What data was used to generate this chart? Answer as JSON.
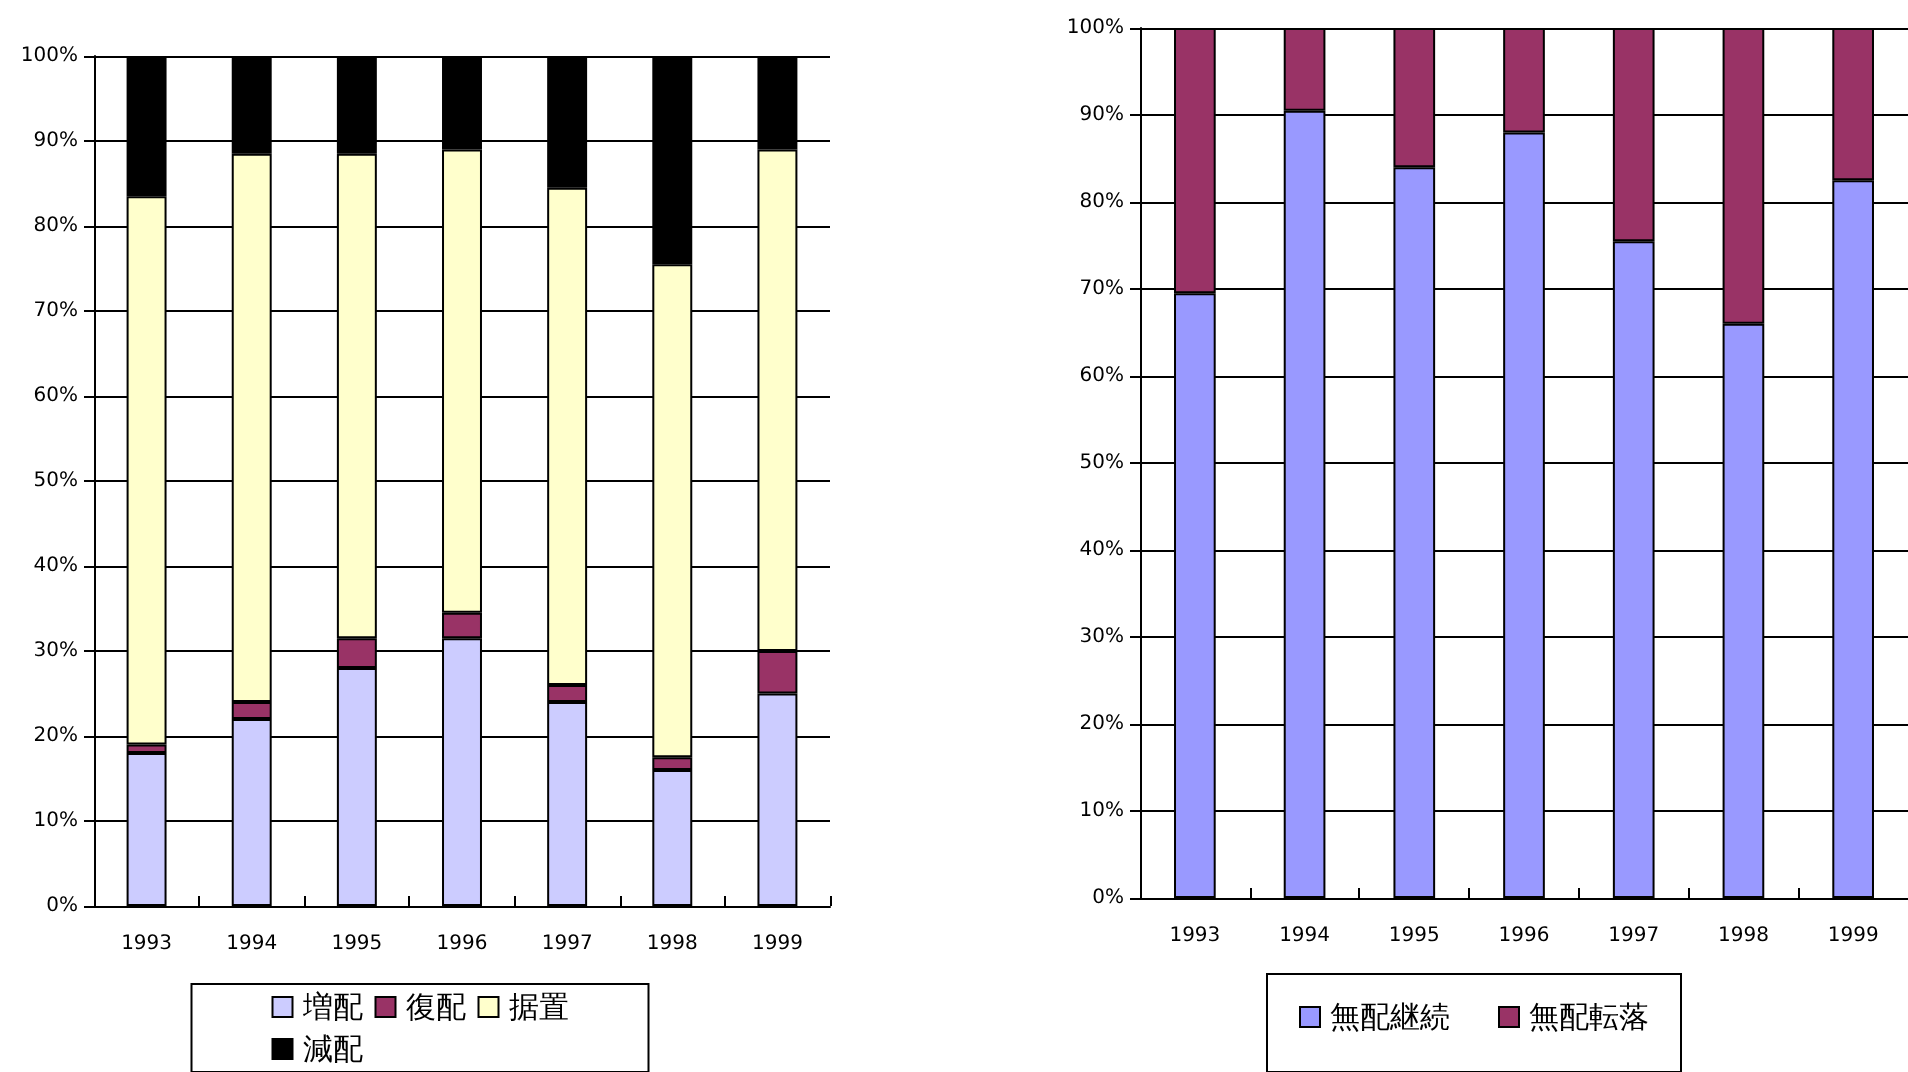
{
  "chart_data": [
    {
      "type": "bar",
      "stacked": true,
      "categories": [
        "1993",
        "1994",
        "1995",
        "1996",
        "1997",
        "1998",
        "1999"
      ],
      "ylim": [
        0,
        100
      ],
      "yticks": [
        {
          "value": 0,
          "label": "0%"
        },
        {
          "value": 10,
          "label": "10%"
        },
        {
          "value": 20,
          "label": "20%"
        },
        {
          "value": 30,
          "label": "30%"
        },
        {
          "value": 40,
          "label": "40%"
        },
        {
          "value": 50,
          "label": "50%"
        },
        {
          "value": 60,
          "label": "60%"
        },
        {
          "value": 70,
          "label": "70%"
        },
        {
          "value": 80,
          "label": "80%"
        },
        {
          "value": 90,
          "label": "90%"
        },
        {
          "value": 100,
          "label": "100%"
        }
      ],
      "grid": "y",
      "legend": "bottom",
      "series": [
        {
          "name": "増配",
          "color": "#ccccff",
          "values": [
            18,
            22,
            28,
            31.5,
            24,
            16,
            25
          ]
        },
        {
          "name": "復配",
          "color": "#993366",
          "values": [
            1,
            2,
            3.5,
            3,
            2,
            1.5,
            5
          ]
        },
        {
          "name": "据置",
          "color": "#ffffcc",
          "values": [
            64.5,
            64.5,
            57,
            54.5,
            58.5,
            58,
            59
          ]
        },
        {
          "name": "減配",
          "color": "#000000",
          "values": [
            16.5,
            11.5,
            11.5,
            11,
            15.5,
            24.5,
            11
          ]
        }
      ]
    },
    {
      "type": "bar",
      "stacked": true,
      "categories": [
        "1993",
        "1994",
        "1995",
        "1996",
        "1997",
        "1998",
        "1999"
      ],
      "ylim": [
        0,
        100
      ],
      "yticks": [
        {
          "value": 0,
          "label": "0%"
        },
        {
          "value": 10,
          "label": "10%"
        },
        {
          "value": 20,
          "label": "20%"
        },
        {
          "value": 30,
          "label": "30%"
        },
        {
          "value": 40,
          "label": "40%"
        },
        {
          "value": 50,
          "label": "50%"
        },
        {
          "value": 60,
          "label": "60%"
        },
        {
          "value": 70,
          "label": "70%"
        },
        {
          "value": 80,
          "label": "80%"
        },
        {
          "value": 90,
          "label": "90%"
        },
        {
          "value": 100,
          "label": "100%"
        }
      ],
      "grid": "y",
      "legend": "bottom",
      "series": [
        {
          "name": "無配継続",
          "color": "#9999ff",
          "values": [
            69.5,
            90.5,
            84,
            88,
            75.5,
            66,
            82.5
          ]
        },
        {
          "name": "無配転落",
          "color": "#993366",
          "values": [
            30.5,
            9.5,
            16,
            12,
            24.5,
            34,
            17.5
          ]
        }
      ]
    }
  ]
}
